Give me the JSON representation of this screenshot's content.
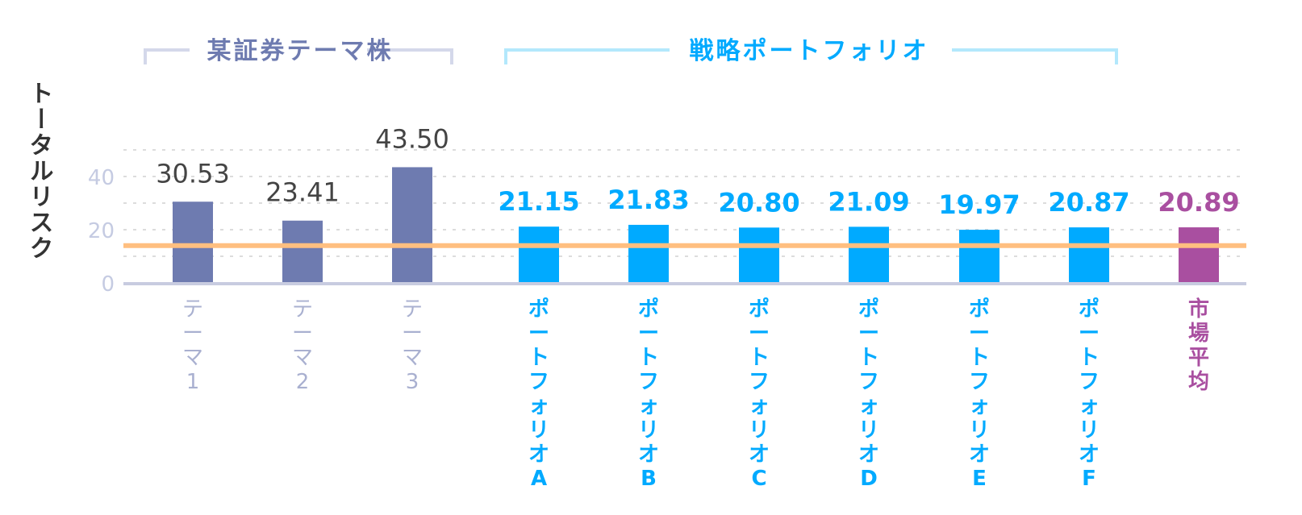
{
  "chart_data": {
    "type": "bar",
    "ylabel": "トータルリスク",
    "ylim": [
      0,
      50
    ],
    "yticks": [
      0,
      20,
      40
    ],
    "grid": true,
    "reference_line": {
      "value": 14,
      "color": "#ffbf80"
    },
    "groups": [
      {
        "label": "某証券テーマ株",
        "color": "#6e7bb0",
        "bracket_color": "#d4d8ea",
        "members": [
          0,
          1,
          2
        ]
      },
      {
        "label": "戦略ポートフォリオ",
        "color": "#00aaff",
        "bracket_color": "#b3e8fc",
        "members": [
          3,
          4,
          5,
          6,
          7,
          8
        ]
      }
    ],
    "categories": [
      "テーマ1",
      "テーマ2",
      "テーマ3",
      "ポートフォリオA",
      "ポートフォリオB",
      "ポートフォリオC",
      "ポートフォリオD",
      "ポートフォリオE",
      "ポートフォリオF",
      "市場平均"
    ],
    "values": [
      30.53,
      23.41,
      43.5,
      21.15,
      21.83,
      20.8,
      21.09,
      19.97,
      20.87,
      20.89
    ],
    "value_labels": [
      "30.53",
      "23.41",
      "43.50",
      "21.15",
      "21.83",
      "20.80",
      "21.09",
      "19.97",
      "20.87",
      "20.89"
    ],
    "bar_colors": [
      "#6e7bb0",
      "#6e7bb0",
      "#6e7bb0",
      "#00aaff",
      "#00aaff",
      "#00aaff",
      "#00aaff",
      "#00aaff",
      "#00aaff",
      "#a94fa0"
    ],
    "value_label_colors": [
      "#444444",
      "#444444",
      "#444444",
      "#00aaff",
      "#00aaff",
      "#00aaff",
      "#00aaff",
      "#00aaff",
      "#00aaff",
      "#a94fa0"
    ],
    "category_label_colors": [
      "#a9b0d0",
      "#a9b0d0",
      "#a9b0d0",
      "#00aaff",
      "#00aaff",
      "#00aaff",
      "#00aaff",
      "#00aaff",
      "#00aaff",
      "#a94fa0"
    ]
  }
}
